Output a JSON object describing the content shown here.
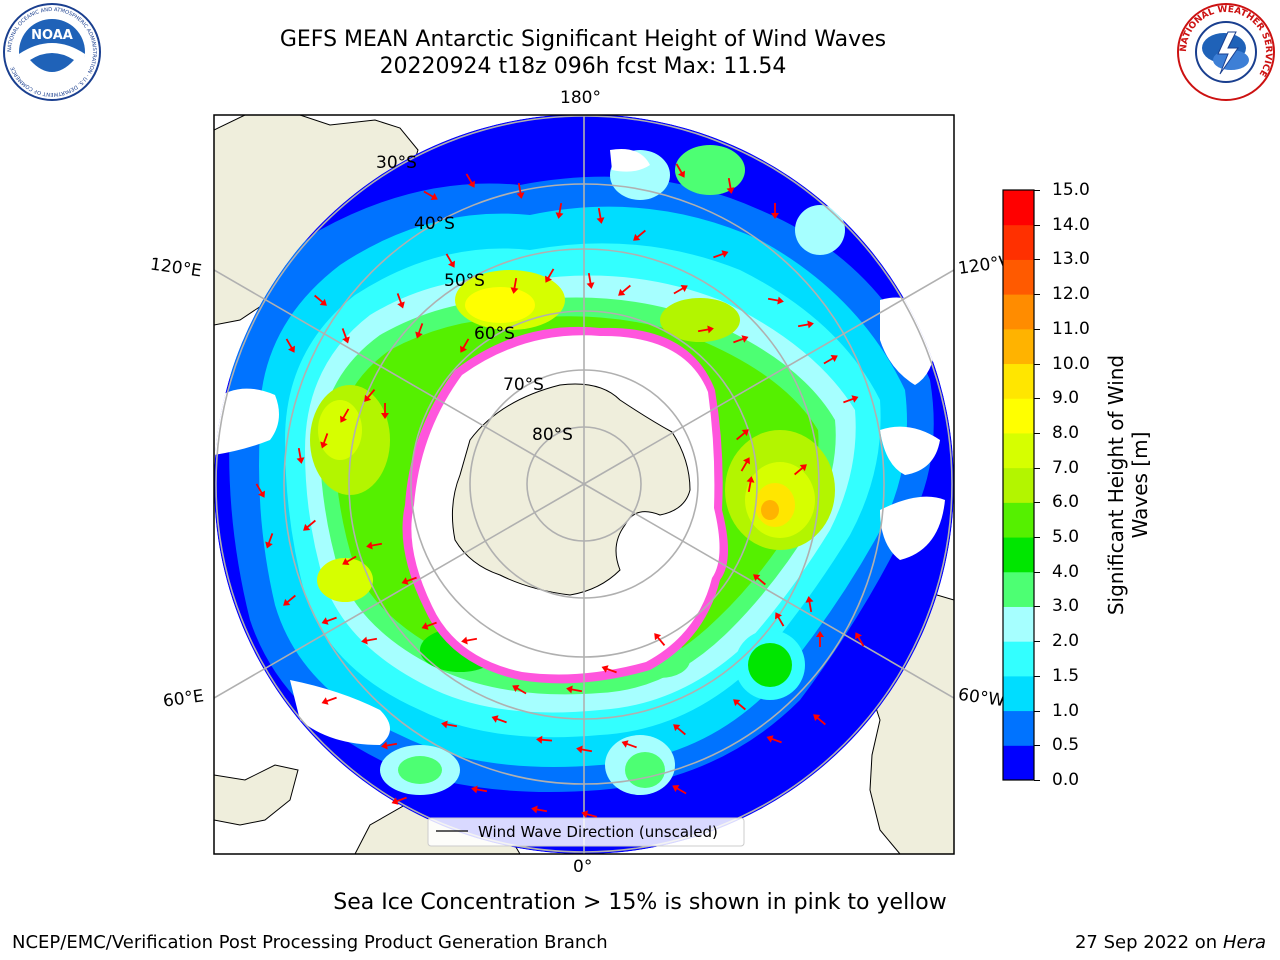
{
  "header": {
    "title_line1": "GEFS MEAN Antarctic Significant Height of Wind Waves",
    "title_line2": "20220924 t18z 096h fcst   Max: 11.54"
  },
  "logos": {
    "left": {
      "name": "noaa-logo",
      "text": "NOAA",
      "ring_text": "NATIONAL OCEANIC AND ATMOSPHERIC ADMINISTRATION · U.S. DEPARTMENT OF COMMERCE"
    },
    "right": {
      "name": "nws-logo",
      "ring_text": "NATIONAL WEATHER SERVICE"
    }
  },
  "map": {
    "projection": "south-polar-stereographic",
    "longitude_labels": {
      "top": "180°",
      "bottom": "0°",
      "upper_left": "120°E",
      "upper_right": "120°W",
      "lower_left": "60°E",
      "lower_right": "60°W"
    },
    "latitude_labels": [
      "30°S",
      "40°S",
      "50°S",
      "60°S",
      "70°S",
      "80°S"
    ],
    "legend": "Wind Wave Direction (unscaled)",
    "arrow_color": "#ff0000"
  },
  "colorbar": {
    "label_line1": "Significant Height of Wind",
    "label_line2": "Waves [m]",
    "ticks": [
      "0.0",
      "0.5",
      "1.0",
      "1.5",
      "2.0",
      "3.0",
      "4.0",
      "5.0",
      "6.0",
      "7.0",
      "8.0",
      "9.0",
      "10.0",
      "11.0",
      "12.0",
      "13.0",
      "14.0",
      "15.0"
    ],
    "colors": [
      "#0000ff",
      "#0073ff",
      "#00ddff",
      "#33ffff",
      "#a6ffff",
      "#4dff73",
      "#00e600",
      "#55f000",
      "#b3f500",
      "#d6ff00",
      "#ffff00",
      "#ffe600",
      "#ffb300",
      "#ff8c00",
      "#ff5a00",
      "#ff3000",
      "#ff0000"
    ]
  },
  "sea_ice_note": "Sea Ice Concentration > 15% is shown in pink to yellow",
  "footer": {
    "left": "NCEP/EMC/Verification Post Processing Product Generation Branch",
    "right_prefix": "27 Sep 2022 on",
    "right_host": "Hera"
  }
}
